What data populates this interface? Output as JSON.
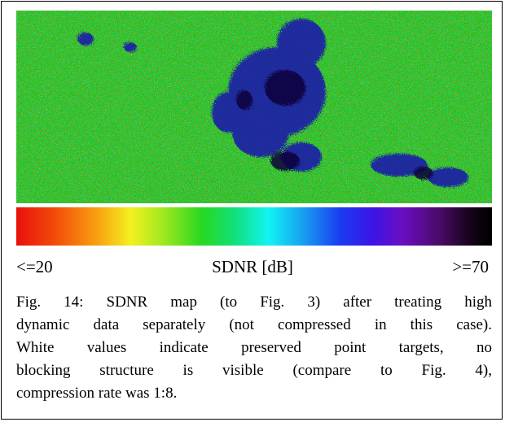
{
  "colorbar": {
    "min_label": "<=20",
    "title": "SDNR [dB]",
    "max_label": ">=70"
  },
  "caption": {
    "lines": [
      "Fig. 14:  SDNR map (to Fig. 3) after treating high",
      "dynamic data separately (not compressed in this case).",
      "White values indicate preserved point targets, no",
      "blocking structure is visible (compare to Fig. 4),",
      "compression rate was 1:8."
    ]
  }
}
